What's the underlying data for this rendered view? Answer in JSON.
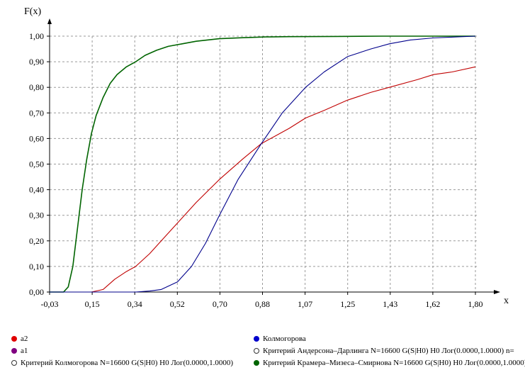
{
  "chart_data": {
    "type": "line",
    "ylabel": "F(x)",
    "xlabel": "x",
    "xlim": [
      -0.03,
      1.8
    ],
    "ylim": [
      0.0,
      1.0
    ],
    "x_ticks": [
      "-0,03",
      "0,15",
      "0,34",
      "0,52",
      "0,70",
      "0,88",
      "1,07",
      "1,25",
      "1,43",
      "1,62",
      "1,80"
    ],
    "y_ticks": [
      "0,00",
      "0,10",
      "0,20",
      "0,30",
      "0,40",
      "0,50",
      "0,60",
      "0,70",
      "0,80",
      "0,90",
      "1,00"
    ],
    "grid": true,
    "series": [
      {
        "name": "Критерий Крамера–Мизеса–Смирнова N=16600 G(S|H0) H0 Лог(0.0000,1.0000)",
        "color": "#006400",
        "x": [
          0.03,
          0.05,
          0.07,
          0.09,
          0.11,
          0.13,
          0.15,
          0.17,
          0.2,
          0.23,
          0.26,
          0.3,
          0.34,
          0.38,
          0.43,
          0.48,
          0.54,
          0.6,
          0.7,
          0.8,
          0.9,
          1.0,
          1.2,
          1.4,
          1.6,
          1.8
        ],
        "values": [
          0.0,
          0.02,
          0.1,
          0.25,
          0.4,
          0.52,
          0.62,
          0.69,
          0.76,
          0.815,
          0.85,
          0.88,
          0.9,
          0.925,
          0.945,
          0.96,
          0.97,
          0.98,
          0.99,
          0.994,
          0.997,
          0.998,
          0.999,
          1.0,
          1.0,
          1.0
        ]
      },
      {
        "name": "Критерий Андерсона–Дарлинга N=16600 G(S|H0) H0 Лог(0.0000,1.0000)",
        "color": "#c00000",
        "x": [
          0.15,
          0.2,
          0.25,
          0.3,
          0.34,
          0.4,
          0.45,
          0.52,
          0.6,
          0.7,
          0.8,
          0.88,
          1.0,
          1.07,
          1.15,
          1.25,
          1.35,
          1.43,
          1.55,
          1.62,
          1.7,
          1.8
        ],
        "values": [
          0.0,
          0.01,
          0.05,
          0.08,
          0.1,
          0.15,
          0.2,
          0.27,
          0.35,
          0.44,
          0.52,
          0.58,
          0.64,
          0.68,
          0.71,
          0.75,
          0.78,
          0.8,
          0.83,
          0.85,
          0.86,
          0.88
        ]
      },
      {
        "name": "Критерий Колмогорова N=16600 G(S|H0) H0 Лог(0.0000,1.0000)",
        "color": "#00008b",
        "x": [
          0.25,
          0.34,
          0.4,
          0.45,
          0.52,
          0.58,
          0.64,
          0.7,
          0.78,
          0.88,
          0.97,
          1.07,
          1.15,
          1.25,
          1.35,
          1.43,
          1.52,
          1.62,
          1.72,
          1.8
        ],
        "values": [
          0.0,
          0.0,
          0.004,
          0.01,
          0.04,
          0.1,
          0.19,
          0.3,
          0.44,
          0.58,
          0.7,
          0.8,
          0.86,
          0.92,
          0.95,
          0.97,
          0.985,
          0.993,
          0.997,
          1.0
        ]
      }
    ]
  },
  "legend": {
    "items": [
      {
        "label": "a2",
        "color": "#e00000",
        "hollow": false
      },
      {
        "label": "a1",
        "color": "#800080",
        "hollow": false
      },
      {
        "label": "Критерий Колмогорова N=16600 G(S|H0) H0 Лог(0.0000,1.0000)",
        "color": "#ffffff",
        "hollow": true
      },
      {
        "label": "Колмогорова",
        "color": "#0000cc",
        "hollow": false
      },
      {
        "label": "Критерий Андерсона–Дарлинга N=16600 G(S|H0) H0 Лог(0.0000,1.0000) n=",
        "color": "#ffffff",
        "hollow": true
      },
      {
        "label": "Критерий Крамера–Мизеса–Смирнова N=16600 G(S|H0) H0 Лог(0.0000,1.0000) n=",
        "color": "#006400",
        "hollow": false
      }
    ]
  },
  "colors": {
    "grid": "#9a9a9a",
    "axis": "#000000"
  }
}
